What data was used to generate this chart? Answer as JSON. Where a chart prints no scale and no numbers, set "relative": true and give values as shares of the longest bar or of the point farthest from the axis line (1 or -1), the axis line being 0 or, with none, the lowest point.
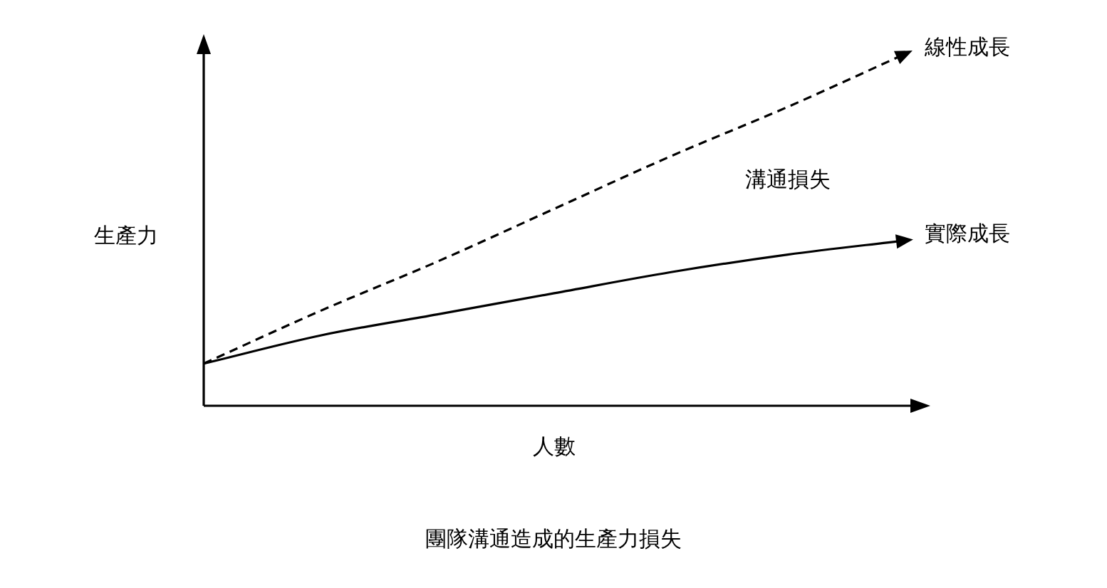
{
  "chart_data": {
    "type": "line",
    "title": "團隊溝通造成的生產力損失",
    "xlabel": "人數",
    "ylabel": "生產力",
    "relative": true,
    "legend": false,
    "marker": "none",
    "categories": [
      null,
      null,
      null,
      null,
      null,
      null,
      null
    ],
    "annotations": [
      "溝通損失"
    ],
    "series": [
      {
        "name": "線性成長",
        "color": "#000000",
        "line_style": "dashed",
        "values": [
          0.12,
          0.27,
          0.41,
          0.56,
          0.71,
          0.85,
          1
        ]
      },
      {
        "name": "實際成長",
        "color": "#000000",
        "line_style": "solid",
        "values": [
          0.12,
          0.2,
          0.26,
          0.32,
          0.38,
          0.43,
          0.47
        ]
      }
    ]
  }
}
